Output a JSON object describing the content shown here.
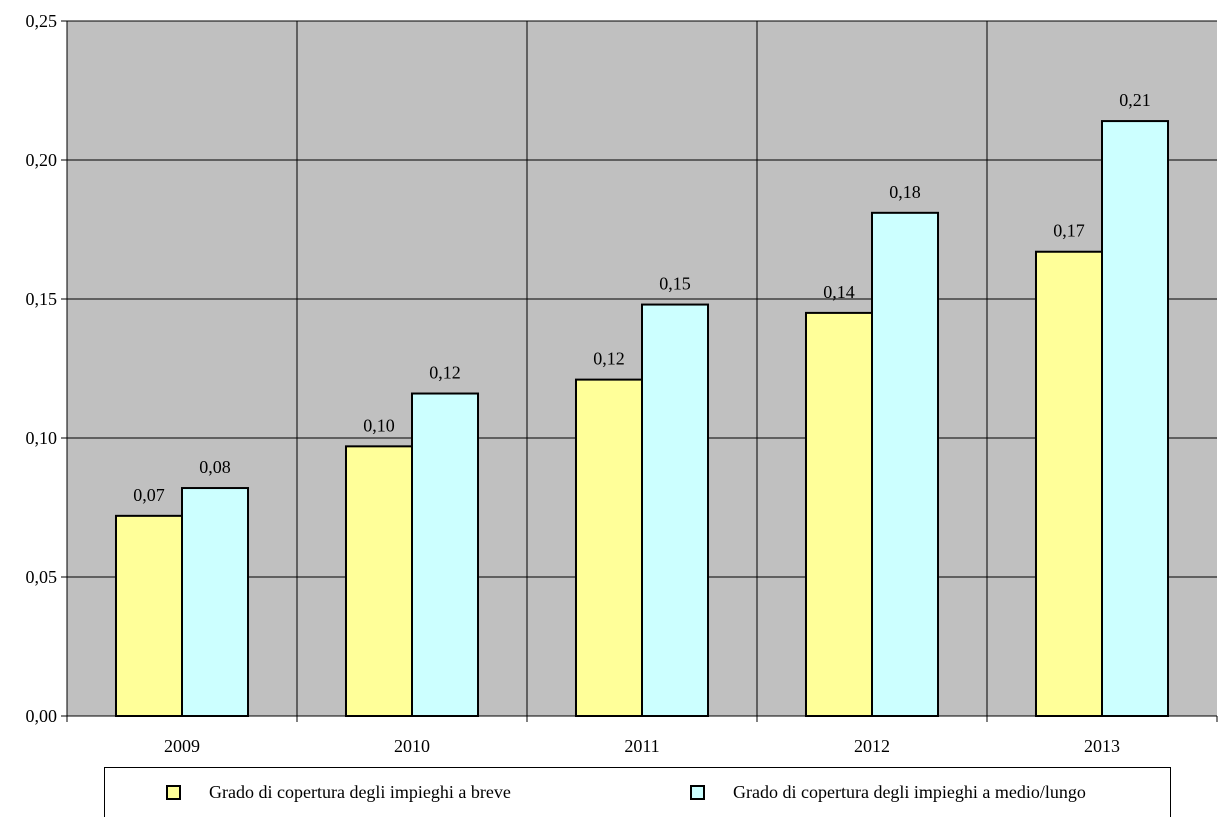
{
  "chart_data": {
    "type": "bar",
    "categories": [
      "2009",
      "2010",
      "2011",
      "2012",
      "2013"
    ],
    "series": [
      {
        "name": "Grado di copertura degli impieghi a breve",
        "values": [
          0.072,
          0.097,
          0.121,
          0.145,
          0.167
        ],
        "labels": [
          "0,07",
          "0,10",
          "0,12",
          "0,14",
          "0,17"
        ],
        "color": "#FFFF99"
      },
      {
        "name": "Grado di copertura degli impieghi a medio/lungo",
        "values": [
          0.082,
          0.116,
          0.148,
          0.181,
          0.214
        ],
        "labels": [
          "0,08",
          "0,12",
          "0,15",
          "0,18",
          "0,21"
        ],
        "color": "#CCFFFF"
      }
    ],
    "yticks": [
      0,
      0.05,
      0.1,
      0.15,
      0.2,
      0.25
    ],
    "ytick_labels": [
      "0,00",
      "0,05",
      "0,10",
      "0,15",
      "0,20",
      "0,25"
    ],
    "ylim": [
      0,
      0.25
    ],
    "grid": true,
    "plot_background": "#C0C0C0",
    "legend_position": "bottom"
  }
}
